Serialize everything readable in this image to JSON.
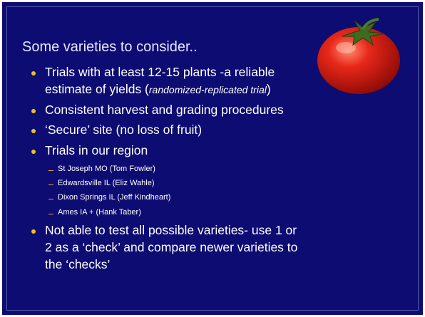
{
  "slide": {
    "title": "Some varieties to consider..",
    "bullets": [
      {
        "lines": [
          "Trials with at least 12-15 plants -a reliable"
        ],
        "continuation": {
          "before": "estimate of yields (",
          "italic": "randomized-replicated trial",
          "after": ")"
        }
      },
      {
        "lines": [
          "Consistent harvest and grading procedures"
        ]
      },
      {
        "lines": [
          "‘Secure’ site (no loss of fruit)"
        ]
      },
      {
        "lines": [
          "Trials in our region"
        ],
        "sub_bullets": [
          "St Joseph MO (Tom Fowler)",
          "Edwardsville IL (Eliz Wahle)",
          "Dixon Springs IL (Jeff Kindheart)",
          "Ames IA + (Hank Taber)"
        ]
      },
      {
        "lines": [
          "Not able to test all possible varieties- use 1 or",
          "2 as a ‘check’ and compare newer varieties to",
          "the ‘checks’"
        ]
      }
    ]
  }
}
